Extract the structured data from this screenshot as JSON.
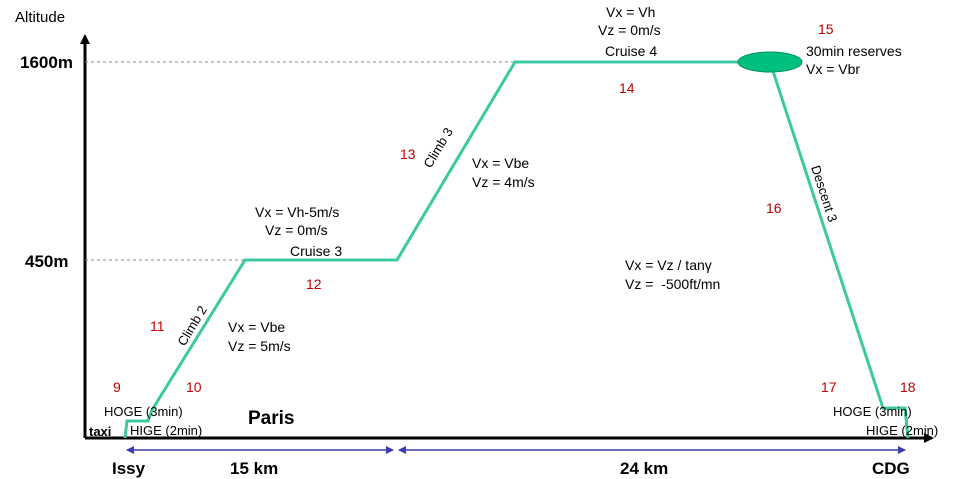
{
  "axis": {
    "y_label": "Altitude",
    "altitudes": [
      "1600m",
      "450m"
    ]
  },
  "ground": {
    "start": "Issy",
    "end": "CDG",
    "city": "Paris",
    "distances": [
      "15 km",
      "24 km"
    ]
  },
  "phases": {
    "taxi": "taxi",
    "hoge_start": "HOGE (3min)",
    "hige_start": "HIGE (2min)",
    "climb2": {
      "name": "Climb 2",
      "vx": "Vx = Vbe",
      "vz": "Vz = 5m/s"
    },
    "cruise3": {
      "name": "Cruise 3",
      "vx": "Vx = Vh-5m/s",
      "vz": "Vz = 0m/s"
    },
    "climb3": {
      "name": "Climb 3",
      "vx": "Vx = Vbe",
      "vz": "Vz = 4m/s"
    },
    "cruise4": {
      "name": "Cruise 4",
      "vx": "Vx = Vh",
      "vz": "Vz = 0m/s"
    },
    "reserves": {
      "name": "30min reserves",
      "vx": "Vx = Vbr"
    },
    "descent3": {
      "name": "Descent 3",
      "vx": "Vx = Vz / tanγ",
      "vz": "Vz =  -500ft/mn"
    },
    "hoge_end": "HOGE (3min)",
    "hige_end": "HIGE (2min)"
  },
  "step_numbers": [
    "9",
    "10",
    "11",
    "12",
    "13",
    "14",
    "15",
    "16",
    "17",
    "18"
  ]
}
